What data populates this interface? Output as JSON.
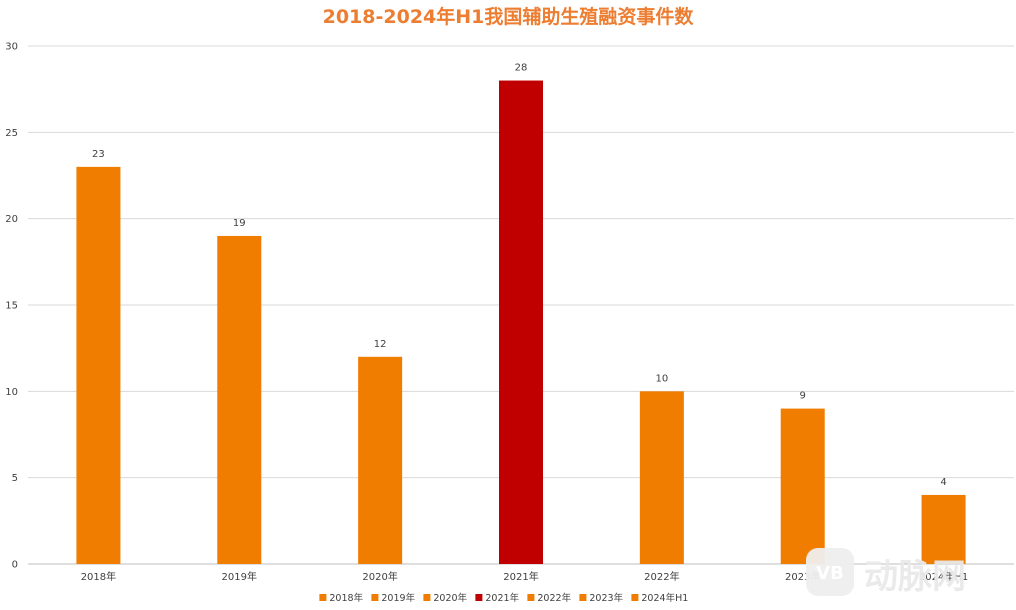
{
  "chart_data": {
    "type": "bar",
    "title": "2018-2024年H1我国辅助生殖融资事件数",
    "xlabel": "",
    "ylabel": "",
    "categories": [
      "2018年",
      "2019年",
      "2020年",
      "2021年",
      "2022年",
      "2023年",
      "2024年H1"
    ],
    "values": [
      23,
      19,
      12,
      28,
      10,
      9,
      4
    ],
    "colors": [
      "#f07c00",
      "#f07c00",
      "#f07c00",
      "#c00000",
      "#f07c00",
      "#f07c00",
      "#f07c00"
    ],
    "ylim": [
      0,
      30
    ],
    "yticks": [
      0,
      5,
      10,
      15,
      20,
      25,
      30
    ],
    "grid": true,
    "legend_position": "bottom",
    "data_labels": true
  },
  "watermark": {
    "text": "动脉网",
    "logo_text": "VB"
  }
}
